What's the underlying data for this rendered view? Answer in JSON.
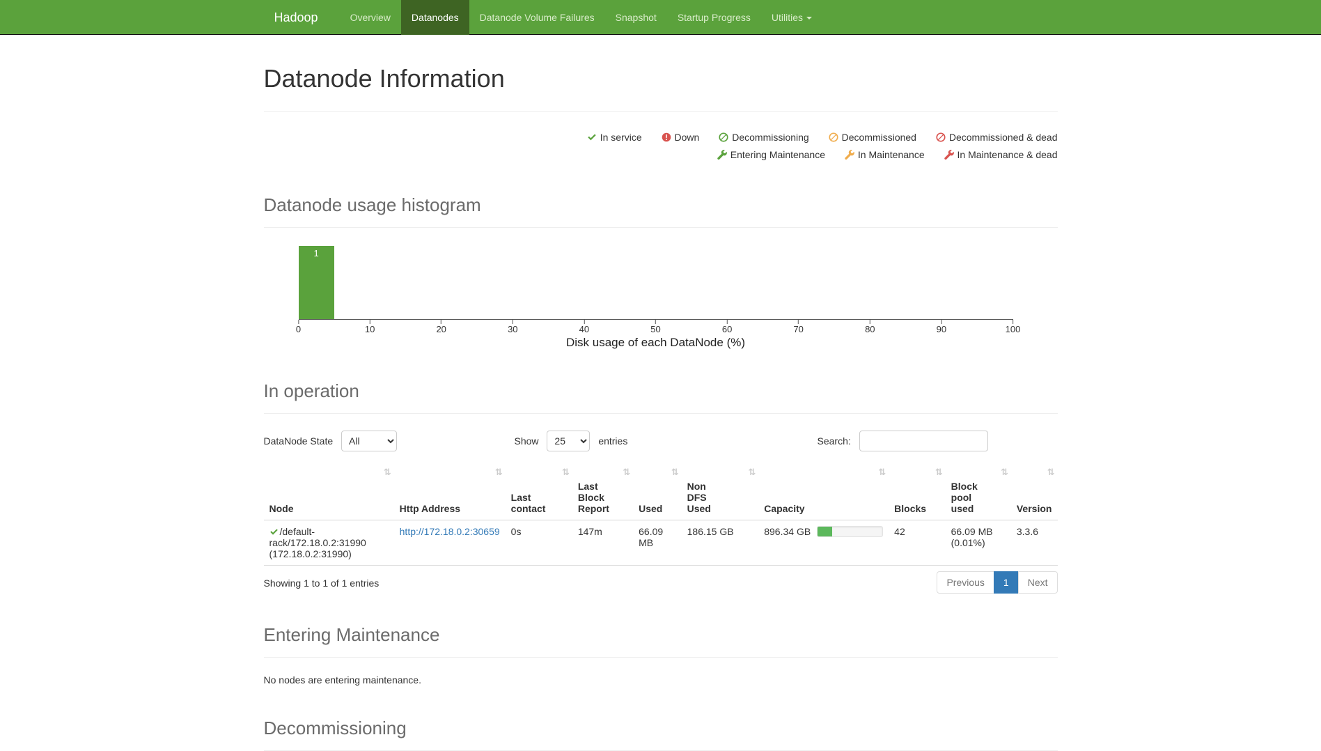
{
  "navbar": {
    "brand": "Hadoop",
    "items": [
      {
        "label": "Overview",
        "active": false
      },
      {
        "label": "Datanodes",
        "active": true
      },
      {
        "label": "Datanode Volume Failures",
        "active": false
      },
      {
        "label": "Snapshot",
        "active": false
      },
      {
        "label": "Startup Progress",
        "active": false
      },
      {
        "label": "Utilities",
        "active": false,
        "dropdown": true
      }
    ]
  },
  "page_title": "Datanode Information",
  "legend": {
    "row1": [
      {
        "label": "In service",
        "icon": "check-icon",
        "color": "#5aa23c"
      },
      {
        "label": "Down",
        "icon": "exclamation-circle-icon",
        "color": "#d9534f"
      },
      {
        "label": "Decommissioning",
        "icon": "ban-circle-icon",
        "color": "#5aa23c"
      },
      {
        "label": "Decommissioned",
        "icon": "ban-circle-icon",
        "color": "#f0ad4e"
      },
      {
        "label": "Decommissioned & dead",
        "icon": "ban-circle-icon",
        "color": "#d9534f"
      }
    ],
    "row2": [
      {
        "label": "Entering Maintenance",
        "icon": "wrench-icon",
        "color": "#5aa23c"
      },
      {
        "label": "In Maintenance",
        "icon": "wrench-icon",
        "color": "#f0ad4e"
      },
      {
        "label": "In Maintenance & dead",
        "icon": "wrench-icon",
        "color": "#d9534f"
      }
    ]
  },
  "sections": {
    "histogram_title": "Datanode usage histogram",
    "in_operation_title": "In operation",
    "entering_maintenance_title": "Entering Maintenance",
    "entering_maintenance_empty": "No nodes are entering maintenance.",
    "decommissioning_title": "Decommissioning"
  },
  "chart_data": {
    "type": "bar",
    "title": "Datanode usage histogram",
    "xlabel": "Disk usage of each DataNode (%)",
    "ylabel": "",
    "xlim": [
      0,
      100
    ],
    "x_ticks": [
      0,
      10,
      20,
      30,
      40,
      50,
      60,
      70,
      80,
      90,
      100
    ],
    "bins": [
      {
        "x0": 0,
        "x1": 5,
        "count": 1
      }
    ],
    "bar_color": "#5aa23c",
    "bar_label_color": "#ffffff",
    "grid": false,
    "legend_position": "none"
  },
  "in_operation": {
    "state_filter_label": "DataNode State",
    "state_filter_value": "All",
    "show_label": "Show",
    "entries_per_page": "25",
    "entries_label": "entries",
    "search_label": "Search:",
    "search_value": "",
    "table": {
      "sort_icon": "⇅",
      "headers": [
        "Node",
        "Http Address",
        "Last contact",
        "Last Block Report",
        "Used",
        "Non DFS Used",
        "Capacity",
        "Blocks",
        "Block pool used",
        "Version"
      ],
      "rows": [
        {
          "status": "in-service",
          "node": "/default-rack/172.18.0.2:31990 (172.18.0.2:31990)",
          "http_address": "http://172.18.0.2:30659",
          "last_contact": "0s",
          "last_block_report": "147m",
          "used": "66.09 MB",
          "non_dfs_used": "186.15 GB",
          "capacity": "896.34 GB",
          "capacity_used_percent": 22,
          "blocks": "42",
          "block_pool_used": "66.09 MB (0.01%)",
          "version": "3.3.6"
        }
      ]
    },
    "info_text": "Showing 1 to 1 of 1 entries",
    "pagination": {
      "previous": "Previous",
      "page": "1",
      "next": "Next"
    }
  },
  "colors": {
    "navbar_bg": "#5ba23c",
    "navbar_active_bg": "#3e6423",
    "link_blue": "#337ab7",
    "progress_fill": "#5cb85c",
    "status_green": "#5aa23c",
    "status_orange": "#f0ad4e",
    "status_red": "#d9534f"
  }
}
